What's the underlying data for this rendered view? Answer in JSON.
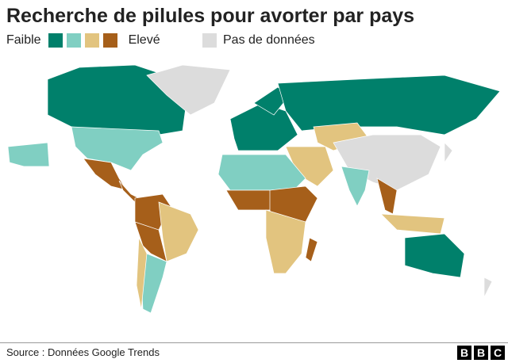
{
  "header": {
    "title": "Recherche de pilules pour avorter par pays"
  },
  "legend": {
    "low_label": "Faible",
    "high_label": "Elevé",
    "no_data_label": "Pas de données",
    "scale_colors": [
      "#00806b",
      "#80cfc2",
      "#e2c47f",
      "#a65f1a"
    ],
    "no_data_color": "#dcdcdc"
  },
  "footer": {
    "source": "Source : Données Google Trends",
    "logo": [
      "B",
      "B",
      "C"
    ]
  }
}
